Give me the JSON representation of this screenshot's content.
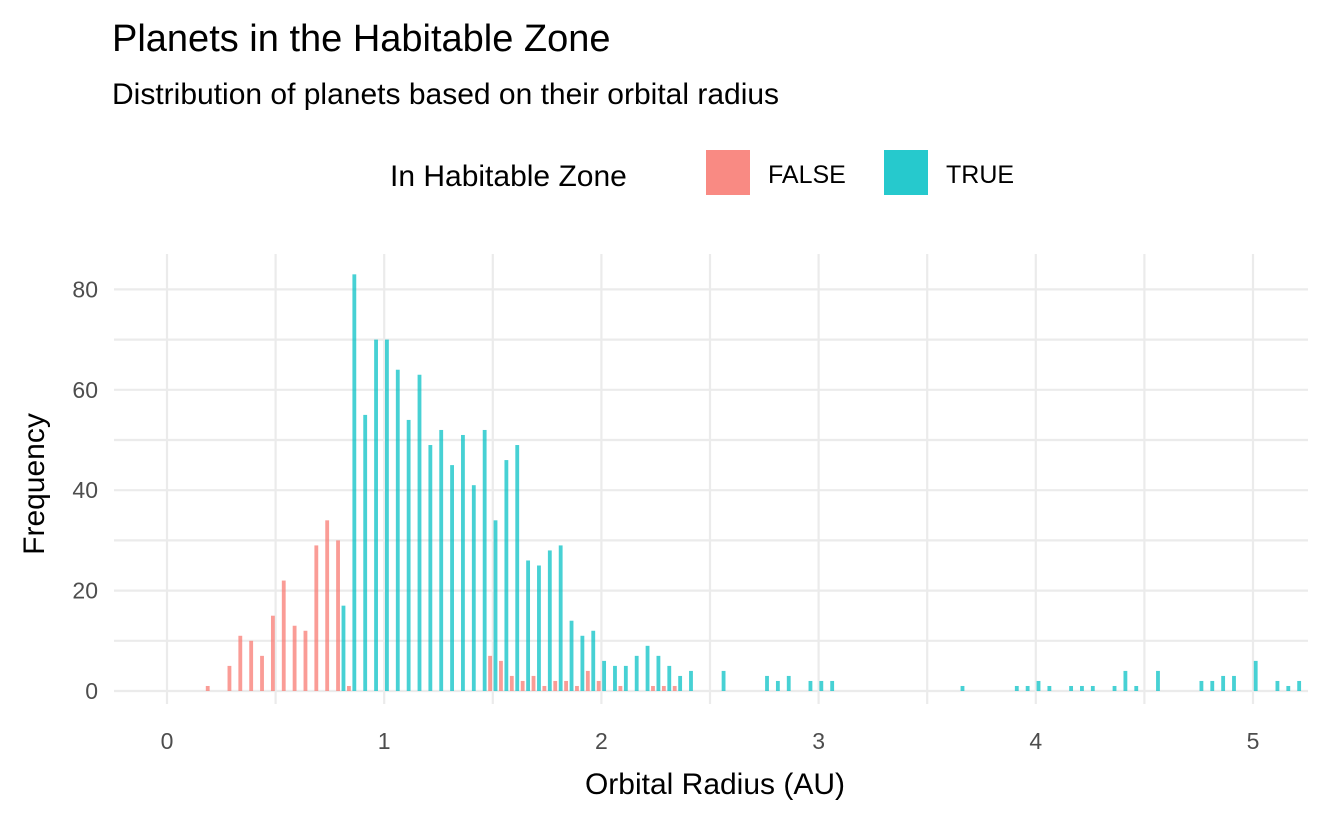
{
  "chart_data": {
    "type": "bar",
    "title": "Planets in the Habitable Zone",
    "subtitle": "Distribution of planets based on their orbital radius",
    "xlabel": "Orbital Radius (AU)",
    "ylabel": "Frequency",
    "xlim": [
      0,
      5.2
    ],
    "ylim": [
      0,
      85
    ],
    "x_ticks": [
      "0",
      "1",
      "2",
      "3",
      "4",
      "5"
    ],
    "y_ticks": [
      "0",
      "20",
      "40",
      "60",
      "80"
    ],
    "grid": true,
    "legend": {
      "title": "In Habitable Zone",
      "placement": "top",
      "entries": [
        {
          "label": "FALSE",
          "color": "#F8766D"
        },
        {
          "label": "TRUE",
          "color": "#00BFC4"
        }
      ]
    },
    "bin_width": 0.05,
    "series": [
      {
        "name": "FALSE",
        "color": "#F8766D",
        "points": [
          [
            0.2,
            1
          ],
          [
            0.3,
            5
          ],
          [
            0.35,
            11
          ],
          [
            0.4,
            10
          ],
          [
            0.45,
            7
          ],
          [
            0.5,
            15
          ],
          [
            0.55,
            22
          ],
          [
            0.6,
            13
          ],
          [
            0.65,
            12
          ],
          [
            0.7,
            29
          ],
          [
            0.75,
            34
          ],
          [
            0.8,
            30
          ],
          [
            0.85,
            1
          ],
          [
            1.5,
            7
          ],
          [
            1.55,
            6
          ],
          [
            1.6,
            3
          ],
          [
            1.65,
            2
          ],
          [
            1.7,
            3
          ],
          [
            1.75,
            1
          ],
          [
            1.8,
            2
          ],
          [
            1.85,
            2
          ],
          [
            1.9,
            1
          ],
          [
            1.95,
            4
          ],
          [
            2.0,
            2
          ],
          [
            2.1,
            1
          ],
          [
            2.25,
            1
          ],
          [
            2.3,
            1
          ],
          [
            2.35,
            1
          ]
        ]
      },
      {
        "name": "TRUE",
        "color": "#00BFC4",
        "points": [
          [
            0.8,
            17
          ],
          [
            0.85,
            83
          ],
          [
            0.9,
            55
          ],
          [
            0.95,
            70
          ],
          [
            1.0,
            70
          ],
          [
            1.05,
            64
          ],
          [
            1.1,
            54
          ],
          [
            1.15,
            63
          ],
          [
            1.2,
            49
          ],
          [
            1.25,
            52
          ],
          [
            1.3,
            45
          ],
          [
            1.35,
            51
          ],
          [
            1.4,
            41
          ],
          [
            1.45,
            52
          ],
          [
            1.5,
            34
          ],
          [
            1.55,
            46
          ],
          [
            1.6,
            49
          ],
          [
            1.65,
            26
          ],
          [
            1.7,
            25
          ],
          [
            1.75,
            28
          ],
          [
            1.8,
            29
          ],
          [
            1.85,
            14
          ],
          [
            1.9,
            11
          ],
          [
            1.95,
            12
          ],
          [
            2.0,
            6
          ],
          [
            2.05,
            5
          ],
          [
            2.1,
            5
          ],
          [
            2.15,
            7
          ],
          [
            2.2,
            9
          ],
          [
            2.25,
            7
          ],
          [
            2.3,
            5
          ],
          [
            2.35,
            3
          ],
          [
            2.4,
            4
          ],
          [
            2.55,
            4
          ],
          [
            2.75,
            3
          ],
          [
            2.8,
            2
          ],
          [
            2.85,
            3
          ],
          [
            2.95,
            2
          ],
          [
            3.0,
            2
          ],
          [
            3.05,
            2
          ],
          [
            3.65,
            1
          ],
          [
            3.9,
            1
          ],
          [
            3.95,
            1
          ],
          [
            4.0,
            2
          ],
          [
            4.05,
            1
          ],
          [
            4.15,
            1
          ],
          [
            4.2,
            1
          ],
          [
            4.25,
            1
          ],
          [
            4.35,
            1
          ],
          [
            4.4,
            4
          ],
          [
            4.45,
            1
          ],
          [
            4.55,
            4
          ],
          [
            4.75,
            2
          ],
          [
            4.8,
            2
          ],
          [
            4.85,
            3
          ],
          [
            4.9,
            3
          ],
          [
            5.0,
            6
          ],
          [
            5.1,
            2
          ],
          [
            5.15,
            1
          ],
          [
            5.2,
            2
          ],
          [
            5.25,
            3
          ]
        ]
      }
    ]
  }
}
